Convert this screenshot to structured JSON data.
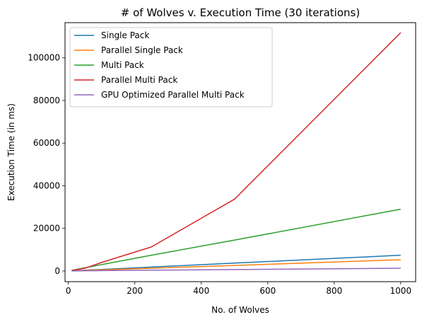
{
  "chart_data": {
    "type": "line",
    "title": "# of Wolves v. Execution Time (30 iterations)",
    "xlabel": "No. of Wolves",
    "ylabel": "Execution Time (in ms)",
    "xlim": [
      -10,
      1045
    ],
    "ylim": [
      -5000,
      116500
    ],
    "xticks": [
      0,
      200,
      400,
      600,
      800,
      1000
    ],
    "yticks": [
      0,
      20000,
      40000,
      60000,
      80000,
      100000
    ],
    "grid": false,
    "legend_position": "top-left",
    "series": [
      {
        "name": "Single Pack",
        "color": "#1f77b4",
        "points": [
          [
            10,
            80
          ],
          [
            50,
            380
          ],
          [
            100,
            740
          ],
          [
            250,
            1850
          ],
          [
            500,
            3700
          ],
          [
            1000,
            7400
          ]
        ]
      },
      {
        "name": "Parallel Single Pack",
        "color": "#ff7f0e",
        "points": [
          [
            10,
            60
          ],
          [
            50,
            270
          ],
          [
            100,
            530
          ],
          [
            250,
            1300
          ],
          [
            500,
            2600
          ],
          [
            1000,
            5300
          ]
        ]
      },
      {
        "name": "Multi Pack",
        "color": "#2ca02c",
        "points": [
          [
            10,
            300
          ],
          [
            50,
            1500
          ],
          [
            100,
            3000
          ],
          [
            250,
            7400
          ],
          [
            500,
            14500
          ],
          [
            1000,
            29000
          ]
        ]
      },
      {
        "name": "Parallel Multi Pack",
        "color": "#d62728",
        "points": [
          [
            10,
            200
          ],
          [
            50,
            1300
          ],
          [
            100,
            4000
          ],
          [
            250,
            11300
          ],
          [
            500,
            33700
          ],
          [
            1000,
            111800
          ]
        ]
      },
      {
        "name": "GPU Optimized Parallel Multi Pack",
        "color": "#9467bd",
        "points": [
          [
            10,
            30
          ],
          [
            50,
            100
          ],
          [
            100,
            180
          ],
          [
            250,
            380
          ],
          [
            500,
            700
          ],
          [
            1000,
            1300
          ]
        ]
      }
    ]
  }
}
